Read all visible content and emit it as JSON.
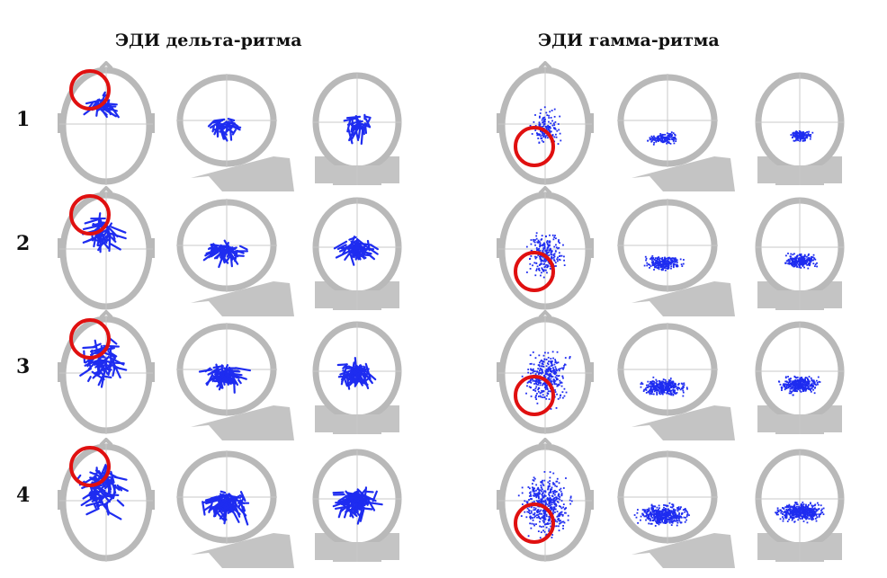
{
  "titles": {
    "delta": "ЭДИ дельта-ритма",
    "gamma": "ЭДИ гамма-ритма"
  },
  "rows": [
    {
      "label": "1",
      "delta_marker": "upper-left",
      "gamma_marker": "lower-center"
    },
    {
      "label": "2",
      "delta_marker": "upper-left",
      "gamma_marker": "lower-center"
    },
    {
      "label": "3",
      "delta_marker": "upper-left",
      "gamma_marker": "lower-center"
    },
    {
      "label": "4",
      "delta_marker": "upper-left",
      "gamma_marker": "lower-center"
    }
  ],
  "views": [
    "axial",
    "sagittal",
    "coronal"
  ],
  "colors": {
    "head_outline": "#b9b9b9",
    "head_fill": "#ffffff",
    "dipole": "#1e2cf0",
    "marker_circle": "#e01010",
    "axis_line": "#c8c8c8"
  }
}
